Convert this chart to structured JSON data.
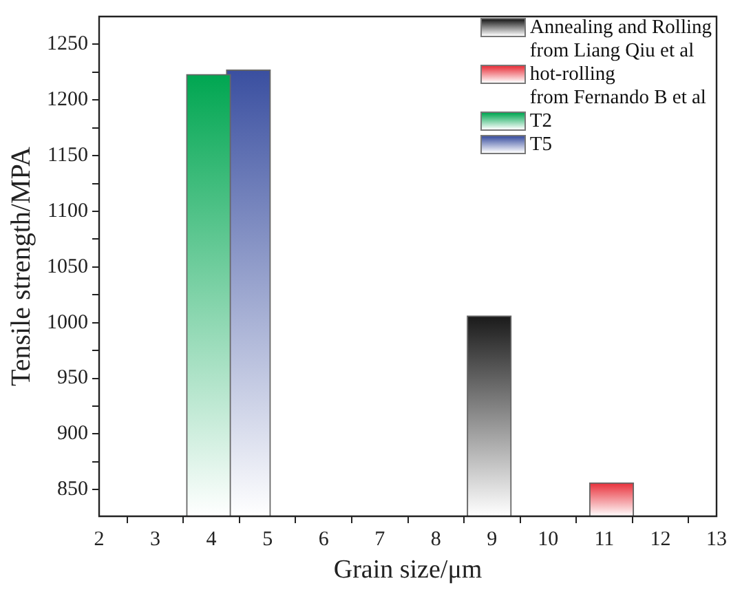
{
  "chart_data": {
    "type": "bar",
    "xlabel": "Grain size/μm",
    "ylabel": "Tensile strength/MPA",
    "series": [
      {
        "name": "Annealing and Rolling\nfrom Liang Qiu et al",
        "color": "#1a1a1a",
        "x": [
          8.95
        ],
        "values": [
          1006
        ]
      },
      {
        "name": "hot-rolling\nfrom Fernando B et al",
        "color": "#e8303a",
        "x": [
          11.13
        ],
        "values": [
          856
        ]
      },
      {
        "name": "T2",
        "color": "#00a651",
        "x": [
          3.95
        ],
        "values": [
          1223
        ]
      },
      {
        "name": "T5",
        "color": "#3a4fa0",
        "x": [
          4.66
        ],
        "values": [
          1227
        ]
      }
    ],
    "xlim": [
      2,
      13
    ],
    "xticks": [
      2,
      3,
      4,
      5,
      6,
      7,
      8,
      9,
      10,
      11,
      12,
      13
    ],
    "ylim": [
      826,
      1275
    ],
    "yticks": [
      {
        "value": 850,
        "label": "850"
      },
      {
        "value": 875,
        "label": null
      },
      900,
      {
        "value": 925,
        "label": null
      },
      950,
      {
        "value": 975,
        "label": null
      },
      1000,
      {
        "value": 1025,
        "label": null
      },
      1050,
      {
        "value": 1075,
        "label": null
      },
      1100,
      {
        "value": 1125,
        "label": null
      },
      1150,
      {
        "value": 1175,
        "label": null
      },
      1200,
      {
        "value": 1225,
        "label": null
      },
      1250
    ],
    "grid": false,
    "legend": "top right"
  }
}
